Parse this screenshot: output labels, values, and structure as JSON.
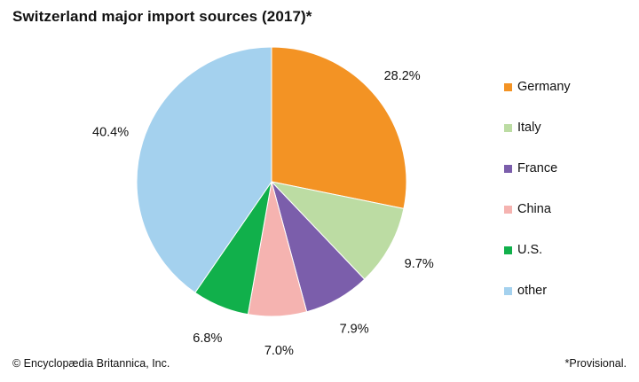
{
  "title": "Switzerland major import sources (2017)*",
  "footer": {
    "credit": "© Encyclopædia Britannica, Inc.",
    "note": "*Provisional."
  },
  "colors": {
    "Germany": "#f39324",
    "Italy": "#bcdca3",
    "France": "#7b5eab",
    "China": "#f5b3b0",
    "U.S.": "#11b04b",
    "other": "#a4d1ee"
  },
  "chart_data": {
    "type": "pie",
    "title": "Switzerland major import sources (2017)*",
    "slices": [
      {
        "label": "Germany",
        "value": 28.2,
        "display": "28.2%"
      },
      {
        "label": "Italy",
        "value": 9.7,
        "display": "9.7%"
      },
      {
        "label": "France",
        "value": 7.9,
        "display": "7.9%"
      },
      {
        "label": "China",
        "value": 7.0,
        "display": "7.0%"
      },
      {
        "label": "U.S.",
        "value": 6.8,
        "display": "6.8%"
      },
      {
        "label": "other",
        "value": 40.4,
        "display": "40.4%"
      }
    ],
    "start": "12 o'clock",
    "direction": "clockwise",
    "legend_position": "right"
  }
}
